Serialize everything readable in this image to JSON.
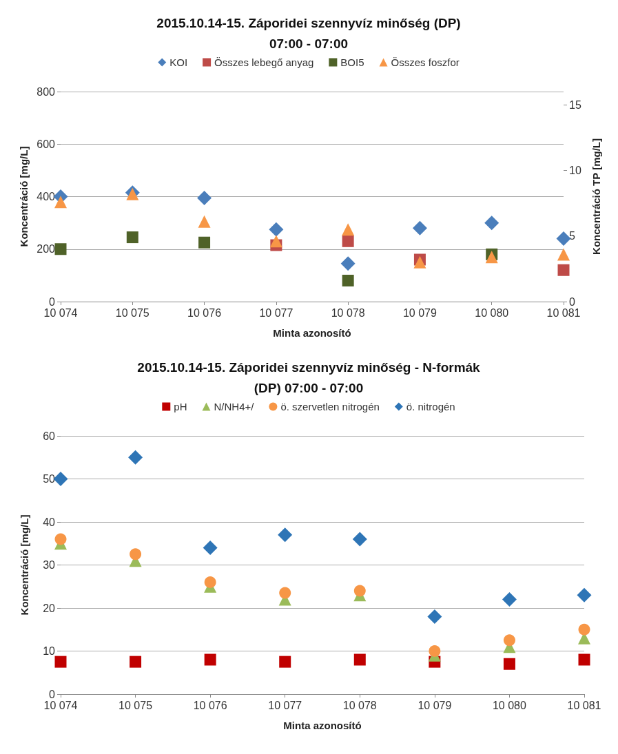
{
  "chart_data": [
    {
      "type": "scatter",
      "title": "2015.10.14-15. Záporidei szennyvíz minőség (DP)\n07:00 - 07:00",
      "xlabel": "Minta azonosító",
      "ylabel": "Koncentráció [mg/L]",
      "y2label": "Koncentráció TP [mg/L]",
      "categories": [
        "10 074",
        "10 075",
        "10 076",
        "10 077",
        "10 078",
        "10 079",
        "10 080",
        "10 081"
      ],
      "series": [
        {
          "name": "KOI",
          "color": "#4a7ebb",
          "marker": "diamond",
          "values": [
            400,
            415,
            395,
            275,
            145,
            280,
            300,
            240
          ]
        },
        {
          "name": "Összes lebegő anyag",
          "color": "#be4b48",
          "marker": "square",
          "values": [
            null,
            null,
            null,
            215,
            230,
            160,
            null,
            120
          ]
        },
        {
          "name": "BOI5",
          "color": "#4f6228",
          "marker": "square",
          "values": [
            200,
            245,
            225,
            null,
            80,
            null,
            180,
            null
          ]
        },
        {
          "name": "Összes foszfor",
          "color": "#f79646",
          "marker": "triangle",
          "axis": "y2",
          "values": [
            7.6,
            8.2,
            6.1,
            4.6,
            5.5,
            3.0,
            3.4,
            3.6
          ]
        }
      ],
      "ylim": [
        0,
        800
      ],
      "yticks": [
        0,
        200,
        400,
        600,
        800
      ],
      "y2lim": [
        0,
        16
      ],
      "y2ticks": [
        0,
        5,
        10,
        15
      ],
      "grid": "y",
      "legend": "top"
    },
    {
      "type": "scatter",
      "title": "2015.10.14-15. Záporidei szennyvíz minőség - N-formák\n(DP) 07:00 - 07:00",
      "xlabel": "Minta azonosító",
      "ylabel": "Koncentráció [mg/L]",
      "categories": [
        "10 074",
        "10 075",
        "10 076",
        "10 077",
        "10 078",
        "10 079",
        "10 080",
        "10 081"
      ],
      "series": [
        {
          "name": "pH",
          "color": "#c00000",
          "marker": "square",
          "values": [
            7.5,
            7.5,
            8,
            7.5,
            8,
            7.5,
            7,
            8
          ]
        },
        {
          "name": "N/NH4+/",
          "color": "#9bbb59",
          "marker": "triangle",
          "values": [
            35,
            31,
            25,
            22,
            23,
            9,
            11,
            13
          ]
        },
        {
          "name": "ö. szervetlen nitrogén",
          "color": "#f79646",
          "marker": "circle",
          "values": [
            36,
            32.5,
            26,
            23.5,
            24,
            10,
            12.5,
            15
          ]
        },
        {
          "name": "ö. nitrogén",
          "color": "#2e75b6",
          "marker": "diamond",
          "values": [
            50,
            55,
            34,
            37,
            36,
            18,
            22,
            23
          ]
        }
      ],
      "ylim": [
        0,
        60
      ],
      "yticks": [
        0,
        10,
        20,
        30,
        40,
        50,
        60
      ],
      "grid": "y",
      "legend": "top"
    }
  ]
}
